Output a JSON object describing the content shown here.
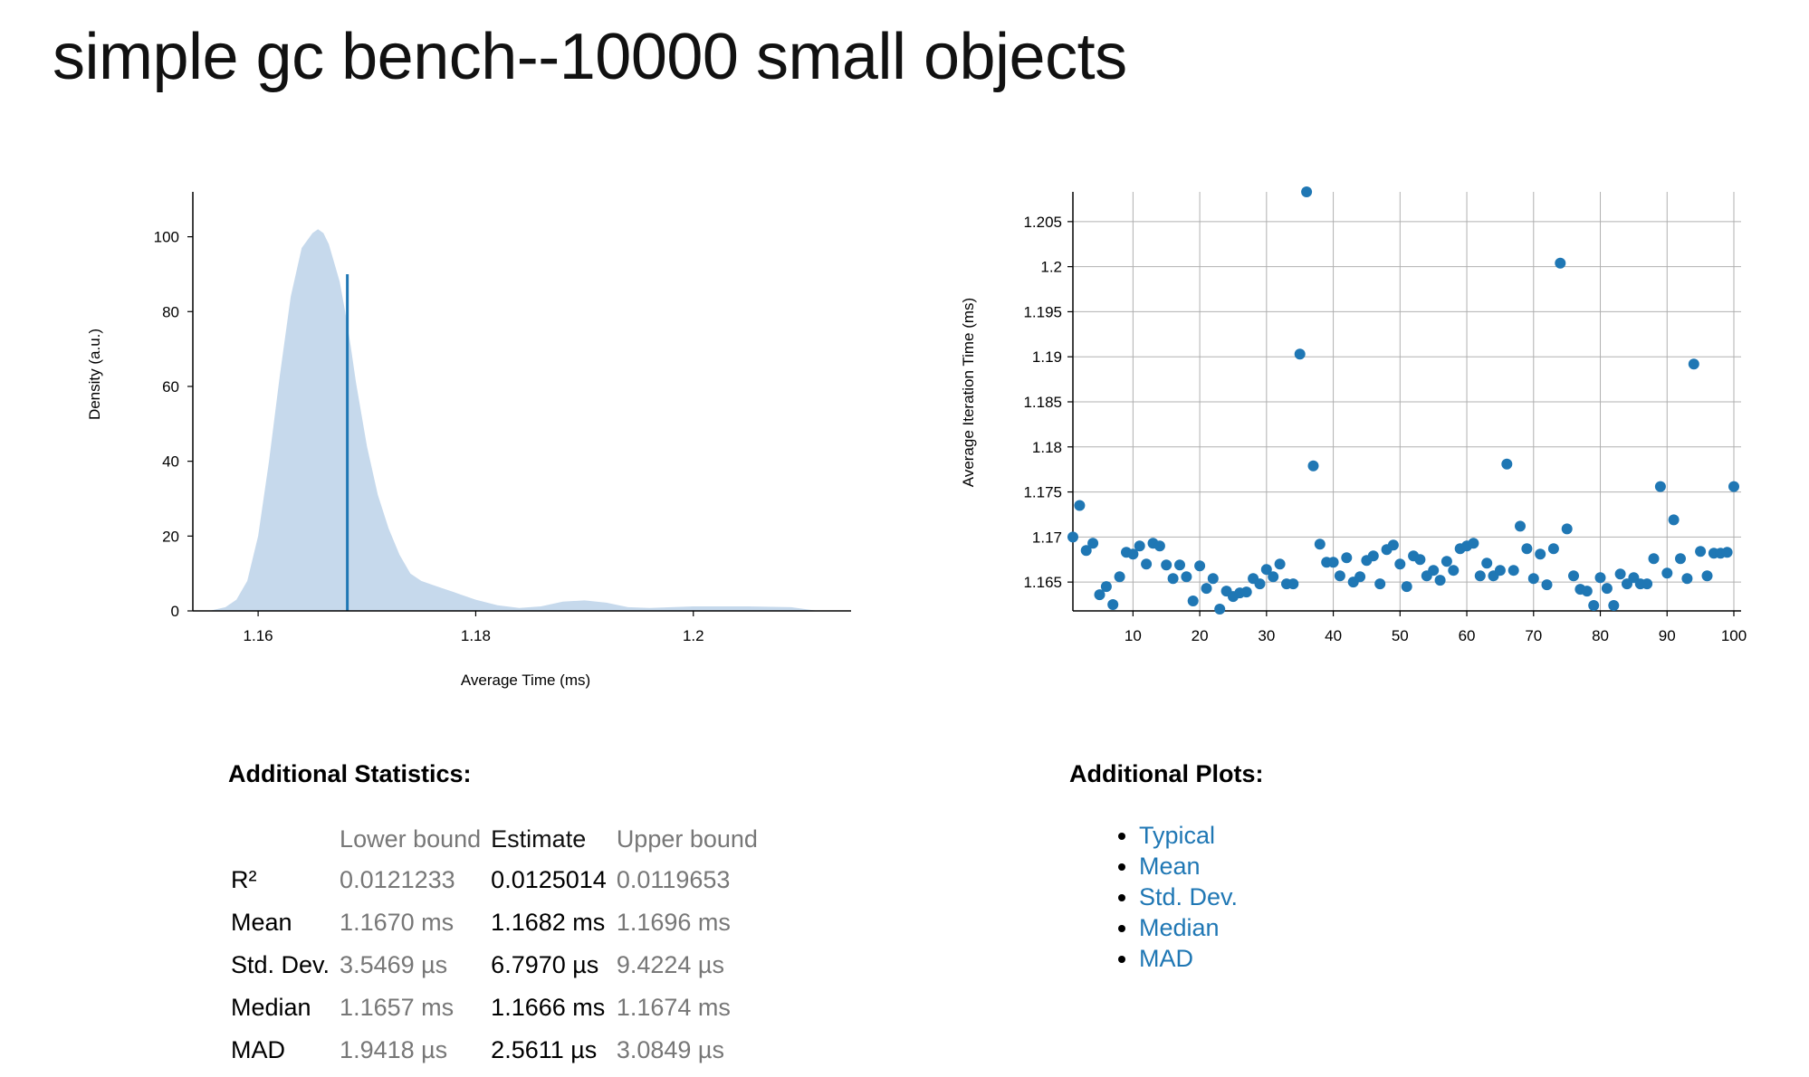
{
  "title": "simple gc bench--10000 small objects",
  "colors": {
    "accent": "#1f77b4",
    "density_fill": "#c6d9ec",
    "grid": "#b0b0b0",
    "bound_text": "#777777"
  },
  "chart_data": [
    {
      "type": "area",
      "name": "pdf",
      "xlabel": "Average Time (ms)",
      "ylabel": "Density (a.u.)",
      "xlim": [
        1.154,
        1.2145
      ],
      "ylim": [
        0,
        112
      ],
      "xticks": [
        1.16,
        1.18,
        1.2
      ],
      "xtick_labels": [
        "1.16",
        "1.18",
        "1.2"
      ],
      "yticks": [
        0,
        20,
        40,
        60,
        80,
        100
      ],
      "ytick_labels": [
        "0",
        "20",
        "40",
        "60",
        "80",
        "100"
      ],
      "x": [
        1.1555,
        1.157,
        1.158,
        1.159,
        1.16,
        1.161,
        1.162,
        1.163,
        1.164,
        1.165,
        1.1655,
        1.166,
        1.1665,
        1.167,
        1.1675,
        1.168,
        1.1685,
        1.169,
        1.17,
        1.171,
        1.172,
        1.173,
        1.174,
        1.175,
        1.176,
        1.177,
        1.178,
        1.179,
        1.18,
        1.182,
        1.184,
        1.186,
        1.188,
        1.19,
        1.192,
        1.194,
        1.196,
        1.198,
        1.2,
        1.205,
        1.209,
        1.2115
      ],
      "density": [
        0,
        1,
        3,
        8,
        20,
        40,
        63,
        84,
        97,
        101,
        102,
        101,
        98,
        93,
        88,
        80,
        71,
        61,
        44,
        31,
        22,
        15,
        10,
        8,
        7,
        6,
        5,
        4,
        3,
        1.5,
        0.8,
        1.2,
        2.5,
        2.8,
        2.2,
        1.0,
        0.8,
        1.0,
        1.2,
        1.2,
        1.0,
        0
      ],
      "mean_line": {
        "x": 1.1682,
        "density": 90
      }
    },
    {
      "type": "scatter",
      "name": "iteration_times",
      "xlabel": "",
      "ylabel": "Average Iteration Time (ms)",
      "xlim": [
        1,
        100
      ],
      "ylim": [
        1.1618,
        1.2083
      ],
      "xticks": [
        10,
        20,
        30,
        40,
        50,
        60,
        70,
        80,
        90,
        100
      ],
      "xtick_labels": [
        "10",
        "20",
        "30",
        "40",
        "50",
        "60",
        "70",
        "80",
        "90",
        "100"
      ],
      "yticks": [
        1.165,
        1.17,
        1.175,
        1.18,
        1.185,
        1.19,
        1.195,
        1.2,
        1.205
      ],
      "ytick_labels": [
        "1.165",
        "1.17",
        "1.175",
        "1.18",
        "1.185",
        "1.19",
        "1.195",
        "1.2",
        "1.205"
      ],
      "x": [
        1,
        2,
        3,
        4,
        5,
        6,
        7,
        8,
        9,
        10,
        11,
        12,
        13,
        14,
        15,
        16,
        17,
        18,
        19,
        20,
        21,
        22,
        23,
        24,
        25,
        26,
        27,
        28,
        29,
        30,
        31,
        32,
        33,
        34,
        35,
        36,
        37,
        38,
        39,
        40,
        41,
        42,
        43,
        44,
        45,
        46,
        47,
        48,
        49,
        50,
        51,
        52,
        53,
        54,
        55,
        56,
        57,
        58,
        59,
        60,
        61,
        62,
        63,
        64,
        65,
        66,
        67,
        68,
        69,
        70,
        71,
        72,
        73,
        74,
        75,
        76,
        77,
        78,
        79,
        80,
        81,
        82,
        83,
        84,
        85,
        86,
        87,
        88,
        89,
        90,
        91,
        92,
        93,
        94,
        95,
        96,
        97,
        98,
        99,
        100
      ],
      "y": [
        1.17,
        1.1735,
        1.1685,
        1.1693,
        1.1636,
        1.1645,
        1.1625,
        1.1656,
        1.1683,
        1.1681,
        1.169,
        1.167,
        1.1693,
        1.169,
        1.1669,
        1.1654,
        1.1669,
        1.1656,
        1.1629,
        1.1668,
        1.1643,
        1.1654,
        1.162,
        1.164,
        1.1634,
        1.1638,
        1.1639,
        1.1654,
        1.1648,
        1.1664,
        1.1656,
        1.167,
        1.1648,
        1.1648,
        1.1903,
        1.2083,
        1.1779,
        1.1692,
        1.1672,
        1.1672,
        1.1657,
        1.1677,
        1.165,
        1.1656,
        1.1674,
        1.1679,
        1.1648,
        1.1686,
        1.1691,
        1.167,
        1.1645,
        1.1679,
        1.1675,
        1.1657,
        1.1663,
        1.1652,
        1.1673,
        1.1663,
        1.1687,
        1.169,
        1.1693,
        1.1657,
        1.1671,
        1.1657,
        1.1663,
        1.1781,
        1.1663,
        1.1712,
        1.1687,
        1.1654,
        1.1681,
        1.1647,
        1.1687,
        1.2004,
        1.1709,
        1.1657,
        1.1642,
        1.164,
        1.1624,
        1.1655,
        1.1643,
        1.1624,
        1.1659,
        1.1648,
        1.1655,
        1.1648,
        1.1648,
        1.1676,
        1.1756,
        1.166,
        1.1719,
        1.1676,
        1.1654,
        1.1892,
        1.1684,
        1.1657,
        1.1682,
        1.1682,
        1.1683,
        1.1756
      ]
    }
  ],
  "stats": {
    "heading": "Additional Statistics:",
    "columns": [
      "",
      "Lower bound",
      "Estimate",
      "Upper bound"
    ],
    "rows": [
      {
        "name": "R²",
        "lower": "0.0121233",
        "estimate": "0.0125014",
        "upper": "0.0119653"
      },
      {
        "name": "Mean",
        "lower": "1.1670 ms",
        "estimate": "1.1682 ms",
        "upper": "1.1696 ms"
      },
      {
        "name": "Std. Dev.",
        "lower": "3.5469 µs",
        "estimate": "6.7970 µs",
        "upper": "9.4224 µs"
      },
      {
        "name": "Median",
        "lower": "1.1657 ms",
        "estimate": "1.1666 ms",
        "upper": "1.1674 ms"
      },
      {
        "name": "MAD",
        "lower": "1.9418 µs",
        "estimate": "2.5611 µs",
        "upper": "3.0849 µs"
      }
    ]
  },
  "plots": {
    "heading": "Additional Plots:",
    "links": [
      "Typical",
      "Mean",
      "Std. Dev.",
      "Median",
      "MAD"
    ]
  }
}
